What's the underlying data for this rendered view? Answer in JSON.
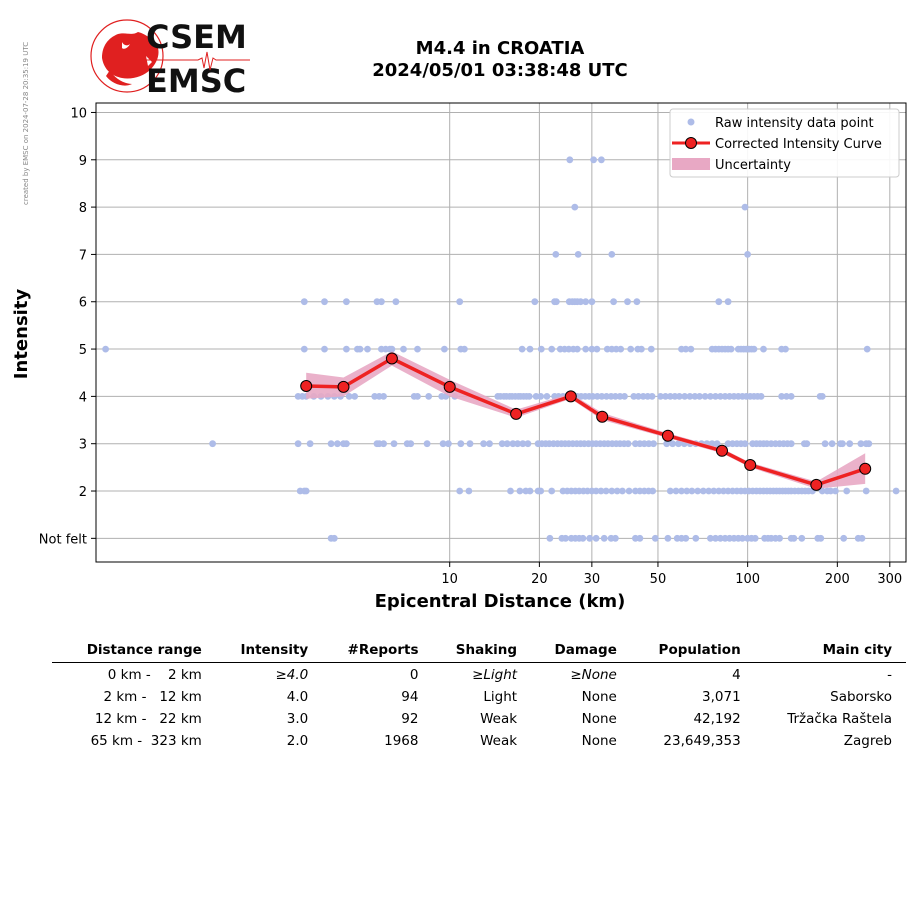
{
  "header": {
    "logo_line1": "CSEM",
    "logo_line2": "EMSC",
    "side_note": "created by EMSC on 2024-07-28 20:35:19 UTC",
    "title_line1": "M4.4 in CROATIA",
    "title_line2": "2024/05/01 03:38:48 UTC"
  },
  "colors": {
    "raw_points": "#aebce8",
    "curve": "#ee2222",
    "marker_fill": "#ee2222",
    "uncertainty": "#e8a8c4",
    "logo_red": "#e02020"
  },
  "chart_data": {
    "type": "scatter",
    "xlabel": "Epicentral Distance (km)",
    "ylabel": "Intensity",
    "xscale": "log",
    "xlim": [
      0.65,
      340
    ],
    "ylim": [
      0.5,
      10.2
    ],
    "x_ticks": [
      10,
      20,
      30,
      50,
      100,
      200,
      300
    ],
    "y_ticks": [
      1,
      2,
      3,
      4,
      5,
      6,
      7,
      8,
      9,
      10
    ],
    "y_tick_labels": [
      "Not felt",
      "2",
      "3",
      "4",
      "5",
      "6",
      "7",
      "8",
      "9",
      "10"
    ],
    "grid": true,
    "legend_position": "top-right",
    "legend": [
      "Raw intensity data point",
      "Corrected Intensity Curve",
      "Uncertainty"
    ],
    "corrected_curve": {
      "x": [
        3.3,
        4.4,
        6.4,
        10.0,
        16.7,
        25.5,
        32.5,
        54,
        82,
        102,
        170,
        248
      ],
      "y": [
        4.22,
        4.2,
        4.8,
        4.2,
        3.63,
        4.0,
        3.57,
        3.17,
        2.85,
        2.55,
        2.13,
        2.47
      ]
    },
    "uncertainty": {
      "x": [
        3.3,
        4.4,
        6.4,
        10.0,
        16.7,
        25.5,
        32.5,
        54,
        82,
        102,
        170,
        248
      ],
      "lower": [
        3.95,
        4.0,
        4.65,
        4.0,
        3.55,
        3.95,
        3.5,
        3.12,
        2.8,
        2.5,
        2.05,
        2.15
      ],
      "upper": [
        4.5,
        4.4,
        4.95,
        4.35,
        3.72,
        4.06,
        3.65,
        3.22,
        2.9,
        2.6,
        2.2,
        2.8
      ]
    },
    "raw_points": [
      [
        0.7,
        5
      ],
      [
        1.6,
        3
      ],
      [
        3.1,
        4
      ],
      [
        3.2,
        4
      ],
      [
        3.3,
        4
      ],
      [
        3.5,
        4
      ],
      [
        3.7,
        4
      ],
      [
        3.9,
        4
      ],
      [
        4.1,
        4
      ],
      [
        4.3,
        4
      ],
      [
        4.6,
        4
      ],
      [
        4.8,
        4
      ],
      [
        5.6,
        4
      ],
      [
        5.8,
        4
      ],
      [
        6.0,
        4
      ],
      [
        7.6,
        4
      ],
      [
        7.8,
        4
      ],
      [
        8.5,
        4
      ],
      [
        9.4,
        4
      ],
      [
        9.7,
        4
      ],
      [
        10.4,
        4
      ],
      [
        3.25,
        6
      ],
      [
        3.8,
        6
      ],
      [
        4.5,
        6
      ],
      [
        5.7,
        6
      ],
      [
        5.9,
        6
      ],
      [
        6.6,
        6
      ],
      [
        10.8,
        6
      ],
      [
        3.25,
        5
      ],
      [
        3.8,
        5
      ],
      [
        4.5,
        5
      ],
      [
        4.9,
        5
      ],
      [
        5.0,
        5
      ],
      [
        5.3,
        5
      ],
      [
        5.9,
        5
      ],
      [
        6.1,
        5
      ],
      [
        6.3,
        5
      ],
      [
        6.4,
        5
      ],
      [
        7.0,
        5
      ],
      [
        7.8,
        5
      ],
      [
        9.6,
        5
      ],
      [
        10.9,
        5
      ],
      [
        11.2,
        5
      ],
      [
        3.1,
        3
      ],
      [
        3.4,
        3
      ],
      [
        4.0,
        3
      ],
      [
        4.2,
        3
      ],
      [
        4.4,
        3
      ],
      [
        4.5,
        3
      ],
      [
        5.7,
        3
      ],
      [
        5.8,
        3
      ],
      [
        6.0,
        3
      ],
      [
        6.5,
        3
      ],
      [
        7.2,
        3
      ],
      [
        7.4,
        3
      ],
      [
        8.4,
        3
      ],
      [
        9.5,
        3
      ],
      [
        9.9,
        3
      ],
      [
        10.9,
        3
      ],
      [
        11.7,
        3
      ],
      [
        13.0,
        3
      ],
      [
        13.6,
        3
      ],
      [
        3.15,
        2
      ],
      [
        3.25,
        2
      ],
      [
        3.3,
        2
      ],
      [
        10.8,
        2
      ],
      [
        11.6,
        2
      ],
      [
        4.0,
        1
      ],
      [
        4.1,
        1
      ],
      [
        14.5,
        4
      ],
      [
        14.8,
        4
      ],
      [
        15.2,
        4
      ],
      [
        15.5,
        4
      ],
      [
        15.9,
        4
      ],
      [
        16.2,
        4
      ],
      [
        16.6,
        4
      ],
      [
        17.0,
        4
      ],
      [
        17.3,
        4
      ],
      [
        17.7,
        4
      ],
      [
        18.1,
        4
      ],
      [
        18.5,
        4
      ],
      [
        19.5,
        4
      ],
      [
        20.2,
        4
      ],
      [
        21.2,
        4
      ],
      [
        22.5,
        4
      ],
      [
        23.2,
        4
      ],
      [
        24.0,
        4
      ],
      [
        24.8,
        4
      ],
      [
        26.0,
        4
      ],
      [
        26.8,
        4
      ],
      [
        27.6,
        4
      ],
      [
        28.5,
        4
      ],
      [
        29.4,
        4
      ],
      [
        30.2,
        4
      ],
      [
        31.3,
        4
      ],
      [
        32.4,
        4
      ],
      [
        33.6,
        4
      ],
      [
        34.8,
        4
      ],
      [
        36.0,
        4
      ],
      [
        37.3,
        4
      ],
      [
        38.6,
        4
      ],
      [
        41.5,
        4
      ],
      [
        43.0,
        4
      ],
      [
        44.6,
        4
      ],
      [
        46.2,
        4
      ],
      [
        47.8,
        4
      ],
      [
        51.0,
        4
      ],
      [
        53.0,
        4
      ],
      [
        55.0,
        4
      ],
      [
        57.0,
        4
      ],
      [
        59.0,
        4
      ],
      [
        61.5,
        4
      ],
      [
        64.0,
        4
      ],
      [
        66.5,
        4
      ],
      [
        69.0,
        4
      ],
      [
        72.0,
        4
      ],
      [
        75.0,
        4
      ],
      [
        78.0,
        4
      ],
      [
        81.0,
        4
      ],
      [
        84.0,
        4
      ],
      [
        87.0,
        4
      ],
      [
        90.0,
        4
      ],
      [
        93.0,
        4
      ],
      [
        96.0,
        4
      ],
      [
        99.0,
        4
      ],
      [
        102.0,
        4
      ],
      [
        105.0,
        4
      ],
      [
        108.0,
        4
      ],
      [
        111.0,
        4
      ],
      [
        130.0,
        4
      ],
      [
        135.0,
        4
      ],
      [
        140.0,
        4
      ],
      [
        175.0,
        4
      ],
      [
        178.0,
        4
      ],
      [
        15.0,
        3
      ],
      [
        15.6,
        3
      ],
      [
        16.3,
        3
      ],
      [
        16.9,
        3
      ],
      [
        17.6,
        3
      ],
      [
        18.3,
        3
      ],
      [
        19.8,
        3
      ],
      [
        20.4,
        3
      ],
      [
        21.0,
        3
      ],
      [
        21.6,
        3
      ],
      [
        22.3,
        3
      ],
      [
        23.0,
        3
      ],
      [
        23.7,
        3
      ],
      [
        24.4,
        3
      ],
      [
        25.1,
        3
      ],
      [
        25.9,
        3
      ],
      [
        26.7,
        3
      ],
      [
        27.5,
        3
      ],
      [
        28.3,
        3
      ],
      [
        29.2,
        3
      ],
      [
        30.1,
        3
      ],
      [
        31.0,
        3
      ],
      [
        32.0,
        3
      ],
      [
        33.0,
        3
      ],
      [
        34.0,
        3
      ],
      [
        35.1,
        3
      ],
      [
        36.2,
        3
      ],
      [
        37.3,
        3
      ],
      [
        38.5,
        3
      ],
      [
        39.7,
        3
      ],
      [
        42.0,
        3
      ],
      [
        43.5,
        3
      ],
      [
        45.0,
        3
      ],
      [
        46.6,
        3
      ],
      [
        48.3,
        3
      ],
      [
        53.5,
        3
      ],
      [
        56.0,
        3
      ],
      [
        58.6,
        3
      ],
      [
        61.3,
        3
      ],
      [
        64.1,
        3
      ],
      [
        67.0,
        3
      ],
      [
        70.0,
        3
      ],
      [
        73.0,
        3
      ],
      [
        76.0,
        3
      ],
      [
        79.0,
        3
      ],
      [
        86.0,
        3
      ],
      [
        89.0,
        3
      ],
      [
        92.0,
        3
      ],
      [
        95.0,
        3
      ],
      [
        98.0,
        3
      ],
      [
        104.0,
        3
      ],
      [
        107.0,
        3
      ],
      [
        110.0,
        3
      ],
      [
        113.0,
        3
      ],
      [
        116.0,
        3
      ],
      [
        120.0,
        3
      ],
      [
        124.0,
        3
      ],
      [
        128.0,
        3
      ],
      [
        132.0,
        3
      ],
      [
        136.0,
        3
      ],
      [
        140.0,
        3
      ],
      [
        155.0,
        3
      ],
      [
        158.0,
        3
      ],
      [
        182.0,
        3
      ],
      [
        192.0,
        3
      ],
      [
        205.0,
        3
      ],
      [
        208.0,
        3
      ],
      [
        220.0,
        3
      ],
      [
        240.0,
        3
      ],
      [
        250.0,
        3
      ],
      [
        255.0,
        3
      ],
      [
        16.0,
        2
      ],
      [
        17.2,
        2
      ],
      [
        18.0,
        2
      ],
      [
        18.6,
        2
      ],
      [
        19.8,
        2
      ],
      [
        20.2,
        2
      ],
      [
        22.0,
        2
      ],
      [
        24.0,
        2
      ],
      [
        24.8,
        2
      ],
      [
        25.6,
        2
      ],
      [
        26.4,
        2
      ],
      [
        27.2,
        2
      ],
      [
        28.1,
        2
      ],
      [
        29.0,
        2
      ],
      [
        30.0,
        2
      ],
      [
        31.0,
        2
      ],
      [
        32.2,
        2
      ],
      [
        33.5,
        2
      ],
      [
        35.0,
        2
      ],
      [
        36.5,
        2
      ],
      [
        38.0,
        2
      ],
      [
        40.0,
        2
      ],
      [
        42.0,
        2
      ],
      [
        43.5,
        2
      ],
      [
        45.0,
        2
      ],
      [
        46.5,
        2
      ],
      [
        48.0,
        2
      ],
      [
        55.0,
        2
      ],
      [
        57.5,
        2
      ],
      [
        60.0,
        2
      ],
      [
        62.5,
        2
      ],
      [
        65.0,
        2
      ],
      [
        68.0,
        2
      ],
      [
        71.0,
        2
      ],
      [
        74.0,
        2
      ],
      [
        77.0,
        2
      ],
      [
        80.0,
        2
      ],
      [
        83.0,
        2
      ],
      [
        86.0,
        2
      ],
      [
        89.0,
        2
      ],
      [
        92.0,
        2
      ],
      [
        95.0,
        2
      ],
      [
        98.0,
        2
      ],
      [
        101.0,
        2
      ],
      [
        104.0,
        2
      ],
      [
        107.0,
        2
      ],
      [
        110.0,
        2
      ],
      [
        113.0,
        2
      ],
      [
        116.0,
        2
      ],
      [
        119.0,
        2
      ],
      [
        122.0,
        2
      ],
      [
        125.0,
        2
      ],
      [
        128.0,
        2
      ],
      [
        131.0,
        2
      ],
      [
        134.0,
        2
      ],
      [
        137.0,
        2
      ],
      [
        140.0,
        2
      ],
      [
        144.0,
        2
      ],
      [
        148.0,
        2
      ],
      [
        152.0,
        2
      ],
      [
        156.0,
        2
      ],
      [
        160.0,
        2
      ],
      [
        165.0,
        2
      ],
      [
        178.0,
        2
      ],
      [
        185.0,
        2
      ],
      [
        190.0,
        2
      ],
      [
        197.0,
        2
      ],
      [
        215.0,
        2
      ],
      [
        250.0,
        2
      ],
      [
        315.0,
        2
      ],
      [
        17.5,
        5
      ],
      [
        18.6,
        5
      ],
      [
        20.3,
        5
      ],
      [
        22.0,
        5
      ],
      [
        23.5,
        5
      ],
      [
        24.3,
        5
      ],
      [
        25.1,
        5
      ],
      [
        26.0,
        5
      ],
      [
        26.8,
        5
      ],
      [
        28.6,
        5
      ],
      [
        30.0,
        5
      ],
      [
        31.2,
        5
      ],
      [
        33.8,
        5
      ],
      [
        35.0,
        5
      ],
      [
        36.2,
        5
      ],
      [
        37.5,
        5
      ],
      [
        40.5,
        5
      ],
      [
        42.8,
        5
      ],
      [
        44.0,
        5
      ],
      [
        47.5,
        5
      ],
      [
        60.0,
        5
      ],
      [
        62.0,
        5
      ],
      [
        64.5,
        5
      ],
      [
        76.0,
        5
      ],
      [
        78.0,
        5
      ],
      [
        80.0,
        5
      ],
      [
        82.0,
        5
      ],
      [
        84.0,
        5
      ],
      [
        86.0,
        5
      ],
      [
        88.0,
        5
      ],
      [
        93.0,
        5
      ],
      [
        95.0,
        5
      ],
      [
        97.0,
        5
      ],
      [
        99.0,
        5
      ],
      [
        101.0,
        5
      ],
      [
        103.0,
        5
      ],
      [
        105.0,
        5
      ],
      [
        113.0,
        5
      ],
      [
        130.0,
        5
      ],
      [
        134.0,
        5
      ],
      [
        252.0,
        5
      ],
      [
        19.3,
        6
      ],
      [
        22.5,
        6
      ],
      [
        22.8,
        6
      ],
      [
        25.2,
        6
      ],
      [
        25.8,
        6
      ],
      [
        26.3,
        6
      ],
      [
        26.8,
        6
      ],
      [
        27.5,
        6
      ],
      [
        28.6,
        6
      ],
      [
        30.0,
        6
      ],
      [
        35.5,
        6
      ],
      [
        39.5,
        6
      ],
      [
        42.5,
        6
      ],
      [
        80.0,
        6
      ],
      [
        86.0,
        6
      ],
      [
        22.7,
        7
      ],
      [
        27.0,
        7
      ],
      [
        35.0,
        7
      ],
      [
        100.0,
        7
      ],
      [
        26.3,
        8
      ],
      [
        98.0,
        8
      ],
      [
        25.3,
        9
      ],
      [
        30.4,
        9
      ],
      [
        32.3,
        9
      ],
      [
        21.7,
        1
      ],
      [
        23.8,
        1
      ],
      [
        24.5,
        1
      ],
      [
        25.6,
        1
      ],
      [
        26.4,
        1
      ],
      [
        27.2,
        1
      ],
      [
        28.0,
        1
      ],
      [
        29.5,
        1
      ],
      [
        31.0,
        1
      ],
      [
        33.0,
        1
      ],
      [
        34.8,
        1
      ],
      [
        36.0,
        1
      ],
      [
        42.0,
        1
      ],
      [
        43.5,
        1
      ],
      [
        49.0,
        1
      ],
      [
        54.0,
        1
      ],
      [
        58.0,
        1
      ],
      [
        60.0,
        1
      ],
      [
        62.0,
        1
      ],
      [
        67.0,
        1
      ],
      [
        75.0,
        1
      ],
      [
        78.0,
        1
      ],
      [
        81.0,
        1
      ],
      [
        84.0,
        1
      ],
      [
        87.0,
        1
      ],
      [
        90.0,
        1
      ],
      [
        93.0,
        1
      ],
      [
        96.0,
        1
      ],
      [
        100.0,
        1
      ],
      [
        103.0,
        1
      ],
      [
        106.0,
        1
      ],
      [
        114.0,
        1
      ],
      [
        117.0,
        1
      ],
      [
        120.0,
        1
      ],
      [
        124.0,
        1
      ],
      [
        128.0,
        1
      ],
      [
        140.0,
        1
      ],
      [
        143.0,
        1
      ],
      [
        152.0,
        1
      ],
      [
        172.0,
        1
      ],
      [
        176.0,
        1
      ],
      [
        210.0,
        1
      ],
      [
        235.0,
        1
      ],
      [
        242.0,
        1
      ]
    ]
  },
  "table": {
    "headers": [
      "Distance range",
      "Intensity",
      "#Reports",
      "Shaking",
      "Damage",
      "Population",
      "Main city"
    ],
    "rows": [
      {
        "range_from": "0 km -",
        "range_to": "2 km",
        "intensity": "≥4.0",
        "reports": "0",
        "shaking": "≥Light",
        "damage": "≥None",
        "population": "4",
        "city": "-"
      },
      {
        "range_from": "2 km -",
        "range_to": "12 km",
        "intensity": "4.0",
        "reports": "94",
        "shaking": "Light",
        "damage": "None",
        "population": "3,071",
        "city": "Saborsko"
      },
      {
        "range_from": "12 km -",
        "range_to": "22 km",
        "intensity": "3.0",
        "reports": "92",
        "shaking": "Weak",
        "damage": "None",
        "population": "42,192",
        "city": "Tržačka Raštela"
      },
      {
        "range_from": "65 km -",
        "range_to": "323 km",
        "intensity": "2.0",
        "reports": "1968",
        "shaking": "Weak",
        "damage": "None",
        "population": "23,649,353",
        "city": "Zagreb"
      }
    ]
  }
}
